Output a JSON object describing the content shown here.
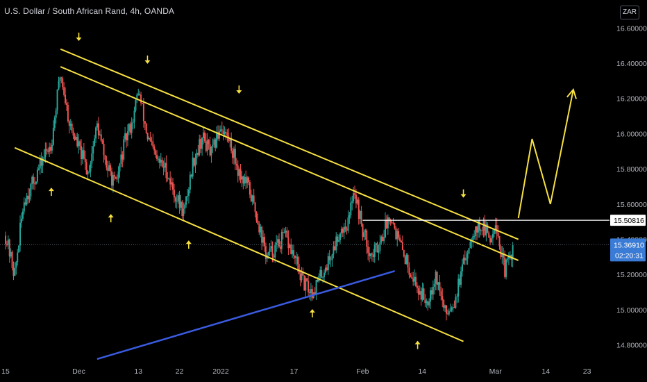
{
  "header": {
    "title": "U.S. Dollar / South African Rand, 4h, OANDA",
    "currency_button": "ZAR"
  },
  "chart_data": {
    "type": "candlestick",
    "symbol": "USDZAR",
    "interval": "4h",
    "source": "OANDA",
    "ylim": [
      14.7,
      16.68
    ],
    "y_ticks": [
      {
        "value": 16.6,
        "label": "16.60000"
      },
      {
        "value": 16.4,
        "label": "16.40000"
      },
      {
        "value": 16.2,
        "label": "16.20000"
      },
      {
        "value": 16.0,
        "label": "16.00000"
      },
      {
        "value": 15.8,
        "label": "15.80000"
      },
      {
        "value": 15.6,
        "label": "15.60000"
      },
      {
        "value": 15.4,
        "label": "15.40000"
      },
      {
        "value": 15.2,
        "label": "15.20000"
      },
      {
        "value": 15.0,
        "label": "15.00000"
      },
      {
        "value": 14.8,
        "label": "14.80000"
      }
    ],
    "x_ticks": [
      {
        "t": 0,
        "label": "15"
      },
      {
        "t": 16,
        "label": "Dec"
      },
      {
        "t": 29,
        "label": "13"
      },
      {
        "t": 38,
        "label": "22"
      },
      {
        "t": 47,
        "label": "2022"
      },
      {
        "t": 63,
        "label": "17"
      },
      {
        "t": 78,
        "label": "Feb"
      },
      {
        "t": 91,
        "label": "14"
      },
      {
        "t": 107,
        "label": "Mar"
      },
      {
        "t": 118,
        "label": "14"
      },
      {
        "t": 127,
        "label": "23"
      }
    ],
    "x_unit": "days since Nov 15",
    "price_path": [
      {
        "t": 0,
        "v": 15.42
      },
      {
        "t": 2,
        "v": 15.2
      },
      {
        "t": 4,
        "v": 15.62
      },
      {
        "t": 6,
        "v": 15.72
      },
      {
        "t": 8,
        "v": 15.85
      },
      {
        "t": 10,
        "v": 15.95
      },
      {
        "t": 12,
        "v": 16.35
      },
      {
        "t": 14,
        "v": 16.05
      },
      {
        "t": 16,
        "v": 15.92
      },
      {
        "t": 18,
        "v": 15.78
      },
      {
        "t": 20,
        "v": 16.05
      },
      {
        "t": 22,
        "v": 15.82
      },
      {
        "t": 24,
        "v": 15.7
      },
      {
        "t": 26,
        "v": 15.95
      },
      {
        "t": 28,
        "v": 16.1
      },
      {
        "t": 29,
        "v": 16.25
      },
      {
        "t": 31,
        "v": 15.98
      },
      {
        "t": 33,
        "v": 15.85
      },
      {
        "t": 35,
        "v": 15.8
      },
      {
        "t": 37,
        "v": 15.65
      },
      {
        "t": 39,
        "v": 15.55
      },
      {
        "t": 41,
        "v": 15.85
      },
      {
        "t": 43,
        "v": 15.98
      },
      {
        "t": 45,
        "v": 15.88
      },
      {
        "t": 47,
        "v": 16.05
      },
      {
        "t": 49,
        "v": 15.95
      },
      {
        "t": 51,
        "v": 15.78
      },
      {
        "t": 53,
        "v": 15.7
      },
      {
        "t": 55,
        "v": 15.52
      },
      {
        "t": 57,
        "v": 15.3
      },
      {
        "t": 59,
        "v": 15.35
      },
      {
        "t": 61,
        "v": 15.42
      },
      {
        "t": 63,
        "v": 15.3
      },
      {
        "t": 65,
        "v": 15.15
      },
      {
        "t": 67,
        "v": 15.1
      },
      {
        "t": 69,
        "v": 15.2
      },
      {
        "t": 71,
        "v": 15.3
      },
      {
        "t": 73,
        "v": 15.45
      },
      {
        "t": 75,
        "v": 15.5
      },
      {
        "t": 76,
        "v": 15.7
      },
      {
        "t": 78,
        "v": 15.45
      },
      {
        "t": 80,
        "v": 15.3
      },
      {
        "t": 82,
        "v": 15.4
      },
      {
        "t": 84,
        "v": 15.55
      },
      {
        "t": 86,
        "v": 15.38
      },
      {
        "t": 88,
        "v": 15.25
      },
      {
        "t": 90,
        "v": 15.12
      },
      {
        "t": 92,
        "v": 15.05
      },
      {
        "t": 94,
        "v": 15.2
      },
      {
        "t": 96,
        "v": 14.98
      },
      {
        "t": 98,
        "v": 15.05
      },
      {
        "t": 100,
        "v": 15.25
      },
      {
        "t": 102,
        "v": 15.45
      },
      {
        "t": 104,
        "v": 15.48
      },
      {
        "t": 106,
        "v": 15.4
      },
      {
        "t": 107,
        "v": 15.52
      },
      {
        "t": 108,
        "v": 15.35
      },
      {
        "t": 109,
        "v": 15.22
      },
      {
        "t": 111,
        "v": 15.36
      }
    ],
    "last_price": 15.3691,
    "last_price_label": "15.36910",
    "countdown_label": "02:20:31",
    "horizontal_level": 15.50816,
    "horizontal_level_label": "15.50816",
    "drawings": {
      "channel_upper": {
        "from": {
          "t": 12,
          "v": 16.48
        },
        "to": {
          "t": 112,
          "v": 15.4
        },
        "color": "#f7e041"
      },
      "channel_mid": {
        "from": {
          "t": 12,
          "v": 16.38
        },
        "to": {
          "t": 112,
          "v": 15.28
        },
        "color": "#f7e041"
      },
      "channel_lower": {
        "from": {
          "t": 2,
          "v": 15.92
        },
        "to": {
          "t": 100,
          "v": 14.82
        },
        "color": "#f7e041"
      },
      "support_trend": {
        "from": {
          "t": 20,
          "v": 14.72
        },
        "to": {
          "t": 85,
          "v": 15.22
        },
        "color": "#3a5be0"
      },
      "projection": {
        "points": [
          {
            "t": 112,
            "v": 15.52
          },
          {
            "t": 115,
            "v": 15.97
          },
          {
            "t": 119,
            "v": 15.6
          },
          {
            "t": 124,
            "v": 16.25
          }
        ],
        "color": "#f7e041"
      },
      "arrows_down": [
        {
          "t": 16,
          "v": 16.55
        },
        {
          "t": 31,
          "v": 16.42
        },
        {
          "t": 51,
          "v": 16.25
        },
        {
          "t": 100,
          "v": 15.66
        }
      ],
      "arrows_up": [
        {
          "t": 10,
          "v": 15.67
        },
        {
          "t": 23,
          "v": 15.52
        },
        {
          "t": 40,
          "v": 15.37
        },
        {
          "t": 67,
          "v": 14.98
        },
        {
          "t": 90,
          "v": 14.8
        }
      ]
    },
    "colors": {
      "background": "#000000",
      "up_candle": "#26a69a",
      "down_candle": "#ef5350",
      "trendline": "#f7e041",
      "support": "#3a5be0",
      "level_line": "#ffffff",
      "price_label": "#3a7bd5"
    }
  }
}
